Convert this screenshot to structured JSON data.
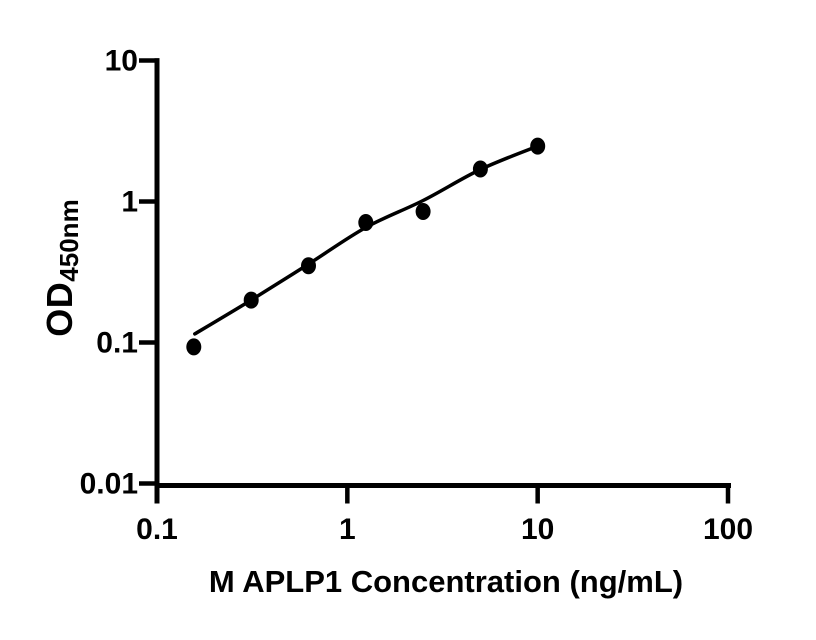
{
  "figure": {
    "background_color": "#ffffff",
    "ink_color": "#000000"
  },
  "chart_data": {
    "type": "scatter",
    "title": "",
    "xlabel": "M APLP1 Concentration (ng/mL)",
    "ylabel_main": "OD",
    "ylabel_sub": "450nm",
    "x_scale": "log",
    "y_scale": "log",
    "xlim": [
      0.1,
      100
    ],
    "ylim": [
      0.01,
      10
    ],
    "x_ticks": [
      0.1,
      1,
      10,
      100
    ],
    "x_tick_labels": [
      "0.1",
      "1",
      "10",
      "100"
    ],
    "y_ticks": [
      0.01,
      0.1,
      1,
      10
    ],
    "y_tick_labels": [
      "0.01",
      "0.1",
      "1",
      "10"
    ],
    "grid": false,
    "legend_position": "none",
    "marker_color": "#000000",
    "line_color": "#000000",
    "series": [
      {
        "name": "standard-data-points",
        "type": "scatter",
        "marker": "filled-circle",
        "x": [
          0.156,
          0.3125,
          0.625,
          1.25,
          2.5,
          5,
          10
        ],
        "y": [
          0.093,
          0.2,
          0.35,
          0.71,
          0.85,
          1.7,
          2.47
        ]
      },
      {
        "name": "fitted-standard-curve",
        "type": "line",
        "x": [
          0.158,
          0.3125,
          0.625,
          1.25,
          2.5,
          5,
          10
        ],
        "y": [
          0.115,
          0.2,
          0.36,
          0.654,
          1.016,
          1.687,
          2.47
        ]
      }
    ]
  }
}
